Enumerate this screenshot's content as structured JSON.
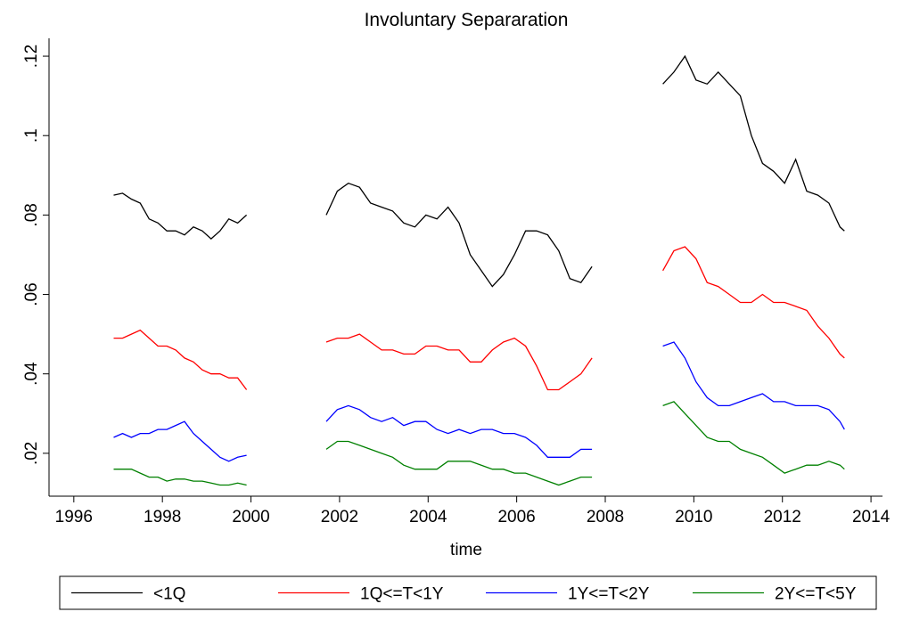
{
  "chart_data": {
    "type": "line",
    "title": "Involuntary Separaration",
    "xlabel": "time",
    "x": [
      1996.9,
      1997.1,
      1997.3,
      1997.5,
      1997.7,
      1997.9,
      1998.1,
      1998.3,
      1998.5,
      1998.7,
      1998.9,
      1999.1,
      1999.3,
      1999.5,
      1999.7,
      1999.9,
      2000.8,
      2001.7,
      2001.95,
      2002.2,
      2002.45,
      2002.7,
      2002.95,
      2003.2,
      2003.45,
      2003.7,
      2003.95,
      2004.2,
      2004.45,
      2004.7,
      2004.95,
      2005.2,
      2005.45,
      2005.7,
      2005.95,
      2006.2,
      2006.45,
      2006.7,
      2006.95,
      2007.2,
      2007.45,
      2007.7,
      2008.5,
      2009.3,
      2009.55,
      2009.8,
      2010.05,
      2010.3,
      2010.55,
      2010.8,
      2011.05,
      2011.3,
      2011.55,
      2011.8,
      2012.05,
      2012.3,
      2012.55,
      2012.8,
      2013.05,
      2013.3,
      2013.4
    ],
    "series": [
      {
        "name": "<1Q",
        "color": "#000000",
        "values": [
          0.085,
          0.0855,
          0.084,
          0.083,
          0.079,
          0.078,
          0.076,
          0.076,
          0.075,
          0.077,
          0.076,
          0.074,
          0.076,
          0.079,
          0.078,
          0.08,
          null,
          0.08,
          0.086,
          0.088,
          0.087,
          0.083,
          0.082,
          0.081,
          0.078,
          0.077,
          0.08,
          0.079,
          0.082,
          0.078,
          0.07,
          0.066,
          0.062,
          0.065,
          0.07,
          0.076,
          0.076,
          0.075,
          0.071,
          0.064,
          0.063,
          0.067,
          null,
          0.113,
          0.116,
          0.12,
          0.114,
          0.113,
          0.116,
          0.113,
          0.11,
          0.1,
          0.093,
          0.091,
          0.088,
          0.094,
          0.086,
          0.085,
          0.083,
          0.077,
          0.076
        ]
      },
      {
        "name": "1Q<=T<1Y",
        "color": "#ff0000",
        "values": [
          0.049,
          0.049,
          0.05,
          0.051,
          0.049,
          0.047,
          0.047,
          0.046,
          0.044,
          0.043,
          0.041,
          0.04,
          0.04,
          0.039,
          0.039,
          0.036,
          null,
          0.048,
          0.049,
          0.049,
          0.05,
          0.048,
          0.046,
          0.046,
          0.045,
          0.045,
          0.047,
          0.047,
          0.046,
          0.046,
          0.043,
          0.043,
          0.046,
          0.048,
          0.049,
          0.047,
          0.042,
          0.036,
          0.036,
          0.038,
          0.04,
          0.044,
          null,
          0.066,
          0.071,
          0.072,
          0.069,
          0.063,
          0.062,
          0.06,
          0.058,
          0.058,
          0.06,
          0.058,
          0.058,
          0.057,
          0.056,
          0.052,
          0.049,
          0.045,
          0.044
        ]
      },
      {
        "name": "1Y<=T<2Y",
        "color": "#0000ff",
        "values": [
          0.024,
          0.025,
          0.024,
          0.025,
          0.025,
          0.026,
          0.026,
          0.027,
          0.028,
          0.025,
          0.023,
          0.021,
          0.019,
          0.018,
          0.019,
          0.0195,
          null,
          0.028,
          0.031,
          0.032,
          0.031,
          0.029,
          0.028,
          0.029,
          0.027,
          0.028,
          0.028,
          0.026,
          0.025,
          0.026,
          0.025,
          0.026,
          0.026,
          0.025,
          0.025,
          0.024,
          0.022,
          0.019,
          0.019,
          0.019,
          0.021,
          0.021,
          null,
          0.047,
          0.048,
          0.044,
          0.038,
          0.034,
          0.032,
          0.032,
          0.033,
          0.034,
          0.035,
          0.033,
          0.033,
          0.032,
          0.032,
          0.032,
          0.031,
          0.028,
          0.026
        ]
      },
      {
        "name": "2Y<=T<5Y",
        "color": "#008000",
        "values": [
          0.016,
          0.016,
          0.016,
          0.015,
          0.014,
          0.014,
          0.013,
          0.0135,
          0.0135,
          0.013,
          0.013,
          0.0125,
          0.012,
          0.012,
          0.0125,
          0.012,
          null,
          0.021,
          0.023,
          0.023,
          0.022,
          0.021,
          0.02,
          0.019,
          0.017,
          0.016,
          0.016,
          0.016,
          0.018,
          0.018,
          0.018,
          0.017,
          0.016,
          0.016,
          0.015,
          0.015,
          0.014,
          0.013,
          0.012,
          0.013,
          0.014,
          0.014,
          null,
          0.032,
          0.033,
          0.03,
          0.027,
          0.024,
          0.023,
          0.023,
          0.021,
          0.02,
          0.019,
          0.017,
          0.015,
          0.016,
          0.017,
          0.017,
          0.018,
          0.017,
          0.016
        ]
      }
    ],
    "xlim": [
      1995.44,
      2014.26
    ],
    "xticks": [
      1996,
      1998,
      2000,
      2002,
      2004,
      2006,
      2008,
      2010,
      2012,
      2014
    ],
    "ylim": [
      0.0092,
      0.1245
    ],
    "yticks": [
      {
        "value": 0.02,
        "label": ".02"
      },
      {
        "value": 0.04,
        "label": ".04"
      },
      {
        "value": 0.06,
        "label": ".06"
      },
      {
        "value": 0.08,
        "label": ".08"
      },
      {
        "value": 0.1,
        "label": ".1"
      },
      {
        "value": 0.12,
        "label": ".12"
      }
    ]
  }
}
